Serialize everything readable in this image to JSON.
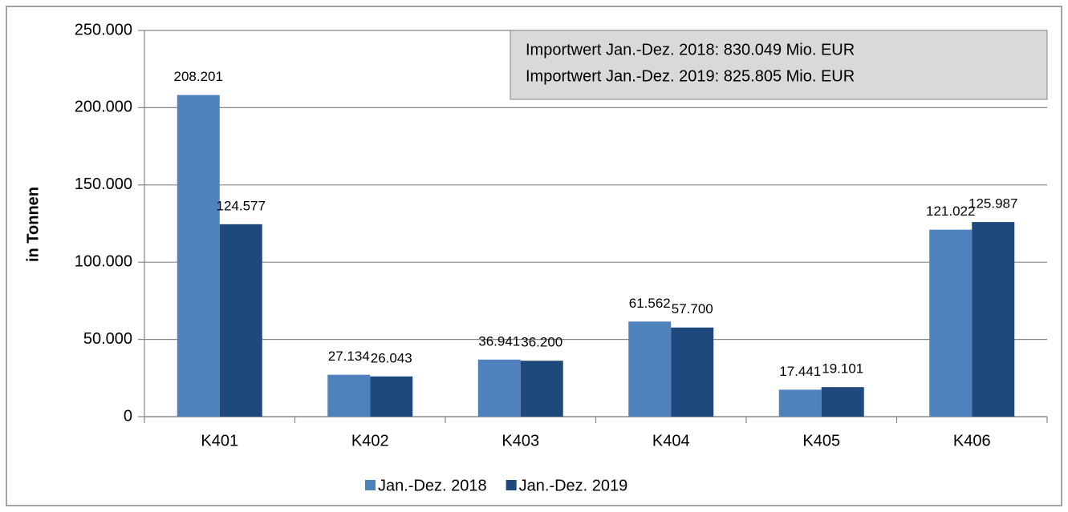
{
  "chart_data": {
    "type": "bar",
    "y_label": "in Tonnen",
    "categories": [
      "K401",
      "K402",
      "K403",
      "K404",
      "K405",
      "K406"
    ],
    "series": [
      {
        "name": "Jan.-Dez. 2018",
        "color": "#4f81bd",
        "values": [
          208201,
          27134,
          36941,
          61562,
          17441,
          121022
        ],
        "value_labels": [
          "208.201",
          "27.134",
          "36.941",
          "61.562",
          "17.441",
          "121.022"
        ]
      },
      {
        "name": "Jan.-Dez. 2019",
        "color": "#1f497d",
        "values": [
          124577,
          26043,
          36200,
          57700,
          19101,
          125987
        ],
        "value_labels": [
          "124.577",
          "26.043",
          "36.200",
          "57.700",
          "19.101",
          "125.987"
        ]
      }
    ],
    "ylim": [
      0,
      250000
    ],
    "yticks": [
      0,
      {
        "value": 50000,
        "label": "50.000"
      },
      {
        "value": 100000,
        "label": "100.000"
      },
      {
        "value": 150000,
        "label": "150.000"
      },
      {
        "value": 200000,
        "label": "200.000"
      },
      {
        "value": 250000,
        "label": "250.000"
      }
    ],
    "grid": true,
    "legend": "bottom",
    "annotations": [
      "Importwert Jan.-Dez. 2018: 830.049 Mio. EUR",
      "Importwert Jan.-Dez. 2019: 825.805 Mio. EUR"
    ]
  }
}
